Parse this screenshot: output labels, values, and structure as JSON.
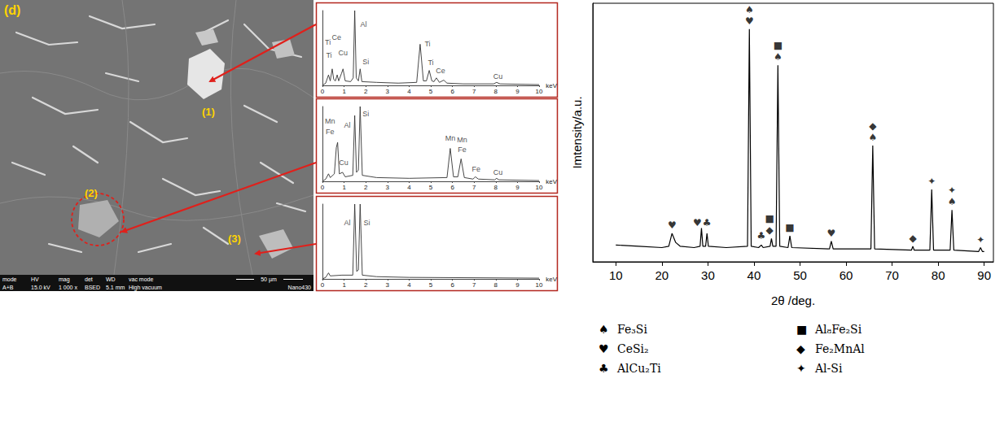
{
  "chart_data": [
    {
      "type": "line",
      "x_label": "keV",
      "color": "#333333",
      "grid": false,
      "tick_labels": "x",
      "xlim": [
        0,
        10
      ],
      "xticks": [
        0,
        1,
        2,
        3,
        4,
        5,
        6,
        7,
        8,
        9,
        10
      ],
      "ylim": [
        0,
        1
      ],
      "x": [
        0,
        0.15,
        0.28,
        0.36,
        0.45,
        0.52,
        0.6,
        0.68,
        0.75,
        0.88,
        0.95,
        1.05,
        1.3,
        1.42,
        1.49,
        1.56,
        1.66,
        1.74,
        1.82,
        2.5,
        3.5,
        4.35,
        4.51,
        4.66,
        4.8,
        4.93,
        5.05,
        5.15,
        5.26,
        5.4,
        5.6,
        5.75,
        6.5,
        7.9,
        8.04,
        8.2,
        10
      ],
      "values": [
        0,
        0.03,
        0.14,
        0.06,
        0.22,
        0.08,
        0.06,
        0.14,
        0.06,
        0.16,
        0.22,
        0.06,
        0.05,
        0.1,
        1.0,
        0.1,
        0.06,
        0.22,
        0.05,
        0.04,
        0.03,
        0.04,
        0.55,
        0.06,
        0.06,
        0.2,
        0.06,
        0.05,
        0.1,
        0.04,
        0.07,
        0.03,
        0.02,
        0.02,
        0.04,
        0.02,
        0.01
      ],
      "annotations": [
        {
          "text": "Ti",
          "x": 0.25,
          "y": 0.58
        },
        {
          "text": "Ce",
          "x": 0.65,
          "y": 0.64
        },
        {
          "text": "Ti",
          "x": 0.3,
          "y": 0.4
        },
        {
          "text": "Cu",
          "x": 0.95,
          "y": 0.44
        },
        {
          "text": "Al",
          "x": 1.9,
          "y": 0.82
        },
        {
          "text": "Si",
          "x": 2.0,
          "y": 0.32
        },
        {
          "text": "Ti",
          "x": 4.85,
          "y": 0.55
        },
        {
          "text": "Ti",
          "x": 5.0,
          "y": 0.3
        },
        {
          "text": "Ce",
          "x": 5.45,
          "y": 0.2
        },
        {
          "text": "Cu",
          "x": 8.1,
          "y": 0.12
        }
      ]
    },
    {
      "type": "line",
      "x_label": "keV",
      "color": "#333333",
      "grid": false,
      "tick_labels": "x",
      "xlim": [
        0,
        10
      ],
      "xticks": [
        0,
        1,
        2,
        3,
        4,
        5,
        6,
        7,
        8,
        9,
        10
      ],
      "ylim": [
        0,
        1
      ],
      "x": [
        0,
        0.15,
        0.28,
        0.36,
        0.55,
        0.64,
        0.7,
        0.78,
        0.93,
        1.05,
        1.4,
        1.49,
        1.57,
        1.66,
        1.74,
        1.84,
        2.5,
        4,
        5.75,
        5.9,
        6.05,
        6.25,
        6.4,
        6.55,
        6.95,
        7.06,
        7.2,
        7.95,
        8.04,
        8.15,
        10
      ],
      "values": [
        0,
        0.03,
        0.1,
        0.05,
        0.1,
        0.45,
        0.52,
        0.1,
        0.12,
        0.06,
        0.08,
        0.88,
        0.12,
        0.15,
        1.0,
        0.08,
        0.05,
        0.04,
        0.05,
        0.44,
        0.06,
        0.06,
        0.3,
        0.05,
        0.03,
        0.06,
        0.03,
        0.02,
        0.04,
        0.02,
        0.01
      ],
      "annotations": [
        {
          "text": "Mn",
          "x": 0.35,
          "y": 0.8
        },
        {
          "text": "Fe",
          "x": 0.35,
          "y": 0.66
        },
        {
          "text": "Cu",
          "x": 0.98,
          "y": 0.25
        },
        {
          "text": "Al",
          "x": 1.15,
          "y": 0.75
        },
        {
          "text": "Si",
          "x": 2.0,
          "y": 0.9
        },
        {
          "text": "Mn",
          "x": 5.9,
          "y": 0.58
        },
        {
          "text": "Mn",
          "x": 6.45,
          "y": 0.55
        },
        {
          "text": "Fe",
          "x": 6.45,
          "y": 0.42
        },
        {
          "text": "Fe",
          "x": 7.1,
          "y": 0.16
        },
        {
          "text": "Cu",
          "x": 8.1,
          "y": 0.12
        }
      ]
    },
    {
      "type": "line",
      "x_label": "keV",
      "color": "#333333",
      "grid": false,
      "tick_labels": "x",
      "xlim": [
        0,
        10
      ],
      "xticks": [
        0,
        1,
        2,
        3,
        4,
        5,
        6,
        7,
        8,
        9,
        10
      ],
      "ylim": [
        0,
        1
      ],
      "x": [
        0,
        0.15,
        0.28,
        0.36,
        0.9,
        1.4,
        1.49,
        1.58,
        1.66,
        1.74,
        1.84,
        2.5,
        4,
        10
      ],
      "values": [
        0,
        0.02,
        0.08,
        0.04,
        0.05,
        0.05,
        1.0,
        0.1,
        0.12,
        1.0,
        0.05,
        0.03,
        0.02,
        0.01
      ],
      "annotations": [
        {
          "text": "Al",
          "x": 1.15,
          "y": 0.75
        },
        {
          "text": "Si",
          "x": 2.05,
          "y": 0.75
        }
      ]
    },
    {
      "type": "line",
      "x_label": "2θ /deg.",
      "y_label": "Imtensity/a.u.",
      "color": "#000000",
      "grid": false,
      "tick_labels": "x",
      "legend": "bottom",
      "xlim": [
        5,
        92
      ],
      "xticks": [
        10,
        20,
        30,
        40,
        50,
        60,
        70,
        80,
        90
      ],
      "ylim": [
        0,
        1
      ],
      "x": [
        10,
        15,
        20,
        21.5,
        22.2,
        23,
        24,
        27,
        28.3,
        28.6,
        28.9,
        29.5,
        29.8,
        30.1,
        34,
        38.6,
        39.0,
        39.4,
        41,
        41.6,
        42,
        43.5,
        43.8,
        44.1,
        44.8,
        45.2,
        45.6,
        47.4,
        47.8,
        48.2,
        56.4,
        56.8,
        57.2,
        65.4,
        65.8,
        66.2,
        74.2,
        74.5,
        74.8,
        78.2,
        78.6,
        79.0,
        82.6,
        83.0,
        83.4,
        88.8,
        89.2,
        89.6,
        90
      ],
      "values": [
        0.065,
        0.06,
        0.055,
        0.06,
        0.11,
        0.075,
        0.06,
        0.055,
        0.06,
        0.13,
        0.06,
        0.06,
        0.11,
        0.06,
        0.055,
        0.06,
        0.9,
        0.06,
        0.055,
        0.065,
        0.055,
        0.06,
        0.09,
        0.06,
        0.06,
        0.76,
        0.06,
        0.055,
        0.1,
        0.055,
        0.05,
        0.08,
        0.05,
        0.05,
        0.45,
        0.05,
        0.045,
        0.06,
        0.045,
        0.045,
        0.28,
        0.045,
        0.045,
        0.2,
        0.045,
        0.04,
        0.055,
        0.04,
        0.04
      ],
      "phases": [
        {
          "name": "Fe₃Si",
          "glyph": "♠"
        },
        {
          "name": "CeSi₂",
          "glyph": "♥"
        },
        {
          "name": "AlCu₂Ti",
          "glyph": "♣"
        },
        {
          "name": "Al₈Fe₂Si",
          "glyph": "■"
        },
        {
          "name": "Fe₂MnAl",
          "glyph": "◆"
        },
        {
          "name": "Al-Si",
          "glyph": "✦"
        }
      ],
      "peak_markers": [
        {
          "x": 22.2,
          "y": 0.11,
          "phases": [
            "CeSi₂"
          ]
        },
        {
          "x": 27.7,
          "y": 0.12,
          "phases": [
            "CeSi₂"
          ]
        },
        {
          "x": 29.8,
          "y": 0.12,
          "phases": [
            "AlCu₂Ti"
          ]
        },
        {
          "x": 39.0,
          "y": 0.9,
          "phases": [
            "Fe₃Si",
            "CeSi₂"
          ]
        },
        {
          "x": 41.6,
          "y": 0.07,
          "phases": [
            "AlCu₂Ti"
          ]
        },
        {
          "x": 43.4,
          "y": 0.09,
          "phases": [
            "Al₈Fe₂Si",
            "Fe₂MnAl"
          ]
        },
        {
          "x": 45.2,
          "y": 0.76,
          "phases": [
            "Al₈Fe₂Si",
            "Fe₃Si"
          ]
        },
        {
          "x": 47.8,
          "y": 0.1,
          "phases": [
            "Al₈Fe₂Si"
          ]
        },
        {
          "x": 56.8,
          "y": 0.08,
          "phases": [
            "CeSi₂"
          ]
        },
        {
          "x": 65.8,
          "y": 0.45,
          "phases": [
            "Fe₂MnAl",
            "Fe₃Si"
          ]
        },
        {
          "x": 74.5,
          "y": 0.06,
          "phases": [
            "Fe₂MnAl"
          ]
        },
        {
          "x": 78.6,
          "y": 0.28,
          "phases": [
            "Al-Si"
          ]
        },
        {
          "x": 83.0,
          "y": 0.2,
          "phases": [
            "Al-Si",
            "Fe₃Si"
          ]
        },
        {
          "x": 89.2,
          "y": 0.055,
          "phases": [
            "Al-Si"
          ]
        }
      ]
    }
  ],
  "image": {
    "panel_label": "(d)",
    "markers": [
      "(1)",
      "(2)",
      "(3)"
    ],
    "info_bar": {
      "headers": [
        "mode",
        "HV",
        "mag",
        "det",
        "WD",
        "vac mode"
      ],
      "values": [
        "A+B",
        "15.0 kV",
        "1 000 x",
        "BSED",
        "5.1 mm",
        "High vacuum"
      ],
      "scale_bar": "50 µm",
      "instrument": "Nano430"
    }
  }
}
